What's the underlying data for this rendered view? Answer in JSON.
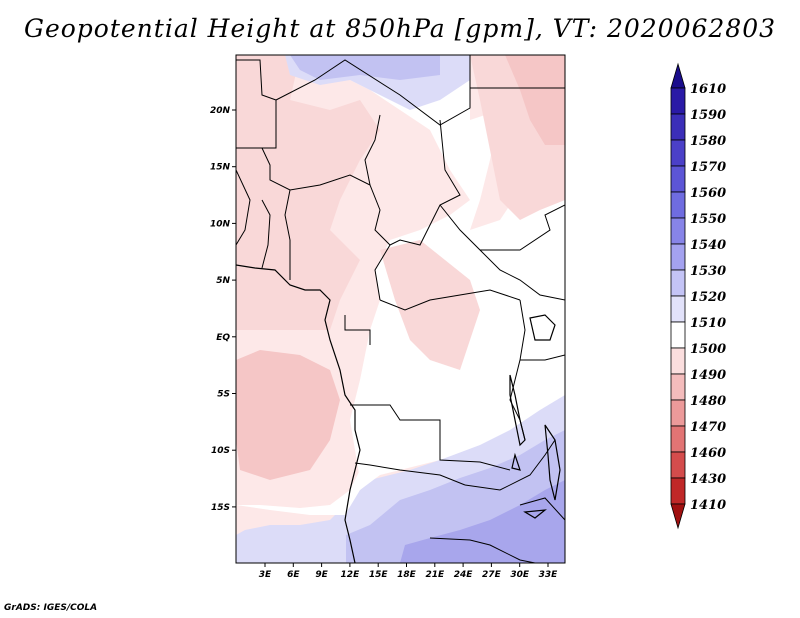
{
  "title": "Geopotential Height at 850hPa [gpm], VT: 2020062803",
  "credit": "GrADS: IGES/COLA",
  "lat_labels": [
    "20N",
    "15N",
    "10N",
    "5N",
    "EQ",
    "5S",
    "10S",
    "15S"
  ],
  "lon_labels": [
    "3E",
    "6E",
    "9E",
    "12E",
    "15E",
    "18E",
    "21E",
    "24E",
    "27E",
    "30E",
    "33E"
  ],
  "colorbar": {
    "labels": [
      "1610",
      "1590",
      "1580",
      "1570",
      "1560",
      "1550",
      "1540",
      "1530",
      "1520",
      "1510",
      "1500",
      "1490",
      "1480",
      "1470",
      "1460",
      "1430",
      "1410"
    ],
    "colors": [
      "#1a0d8c",
      "#2a1aa6",
      "#3b2eb8",
      "#4b40c8",
      "#5c55d6",
      "#6f6ce0",
      "#8784e8",
      "#a4a2f0",
      "#c4c4f6",
      "#e2e2fa",
      "#ffffff",
      "#fbdede",
      "#f4bcbc",
      "#ec9a9a",
      "#e27474",
      "#d44c4c",
      "#c02828",
      "#a01010"
    ]
  },
  "map": {
    "lon_range": [
      0,
      35
    ],
    "lat_range": [
      -20,
      24
    ],
    "fields": {
      "background": "#fde8e8",
      "white": "#ffffff",
      "light_blue": "#dcdcf8",
      "mid_blue": "#c2c2f2",
      "strong_blue": "#a8a6ec",
      "light_red": "#f9d8d8",
      "mid_red": "#f5c6c6"
    }
  }
}
